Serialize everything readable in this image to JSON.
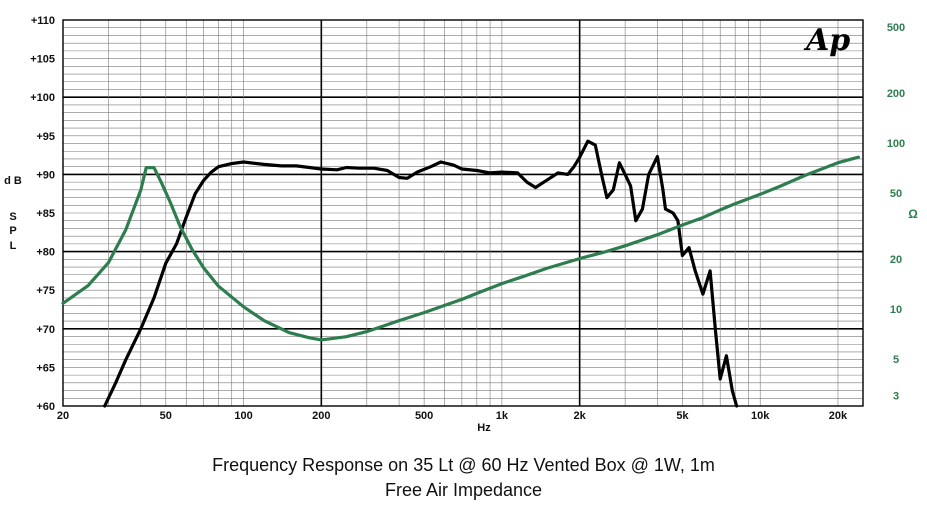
{
  "chart_data": {
    "type": "line",
    "title": "Frequency Response on 35 Lt @ 60 Hz Vented Box @ 1W, 1m",
    "subtitle": "Free Air Impedance",
    "logo_text": "Ap",
    "xlabel": "Hz",
    "ylabel": "dB SPL",
    "y2label": "Ω",
    "xscale": "log",
    "xlim": [
      20,
      25000
    ],
    "ylim": [
      60,
      110
    ],
    "y2scale": "log",
    "y2lim": [
      2.6,
      550
    ],
    "grid": true,
    "x_ticks": [
      {
        "v": 20,
        "label": "20"
      },
      {
        "v": 50,
        "label": "50"
      },
      {
        "v": 100,
        "label": "100"
      },
      {
        "v": 200,
        "label": "200"
      },
      {
        "v": 500,
        "label": "500"
      },
      {
        "v": 1000,
        "label": "1k"
      },
      {
        "v": 2000,
        "label": "2k"
      },
      {
        "v": 5000,
        "label": "5k"
      },
      {
        "v": 10000,
        "label": "10k"
      },
      {
        "v": 20000,
        "label": "20k"
      }
    ],
    "y_ticks": [
      {
        "v": 60,
        "label": "+60"
      },
      {
        "v": 65,
        "label": "+65"
      },
      {
        "v": 70,
        "label": "+70"
      },
      {
        "v": 75,
        "label": "+75"
      },
      {
        "v": 80,
        "label": "+80"
      },
      {
        "v": 85,
        "label": "+85"
      },
      {
        "v": 90,
        "label": "+90"
      },
      {
        "v": 95,
        "label": "+95"
      },
      {
        "v": 100,
        "label": "+100"
      },
      {
        "v": 105,
        "label": "+105"
      },
      {
        "v": 110,
        "label": "+110"
      }
    ],
    "y2_ticks": [
      {
        "v": 500,
        "label": "500"
      },
      {
        "v": 200,
        "label": "200"
      },
      {
        "v": 100,
        "label": "100"
      },
      {
        "v": 50,
        "label": "50"
      },
      {
        "v": 20,
        "label": "20"
      },
      {
        "v": 10,
        "label": "10"
      },
      {
        "v": 5,
        "label": "5"
      },
      {
        "v": 3,
        "label": "3"
      }
    ],
    "series": [
      {
        "axis": "left",
        "color": "#000000",
        "points": [
          [
            29,
            60
          ],
          [
            32,
            63
          ],
          [
            35,
            66
          ],
          [
            40,
            70
          ],
          [
            45,
            74
          ],
          [
            50,
            78.5
          ],
          [
            55,
            81
          ],
          [
            60,
            84.5
          ],
          [
            65,
            87.5
          ],
          [
            70,
            89.2
          ],
          [
            75,
            90.3
          ],
          [
            80,
            91
          ],
          [
            90,
            91.4
          ],
          [
            100,
            91.6
          ],
          [
            120,
            91.3
          ],
          [
            140,
            91.1
          ],
          [
            160,
            91.1
          ],
          [
            180,
            90.9
          ],
          [
            200,
            90.7
          ],
          [
            230,
            90.6
          ],
          [
            250,
            90.9
          ],
          [
            280,
            90.8
          ],
          [
            320,
            90.8
          ],
          [
            360,
            90.5
          ],
          [
            400,
            89.6
          ],
          [
            430,
            89.5
          ],
          [
            470,
            90.3
          ],
          [
            530,
            91
          ],
          [
            580,
            91.6
          ],
          [
            650,
            91.2
          ],
          [
            700,
            90.7
          ],
          [
            800,
            90.5
          ],
          [
            900,
            90.2
          ],
          [
            1000,
            90.3
          ],
          [
            1150,
            90.2
          ],
          [
            1250,
            89
          ],
          [
            1350,
            88.3
          ],
          [
            1500,
            89.3
          ],
          [
            1650,
            90.2
          ],
          [
            1800,
            90
          ],
          [
            1900,
            91
          ],
          [
            2000,
            92.2
          ],
          [
            2150,
            94.3
          ],
          [
            2300,
            93.8
          ],
          [
            2450,
            89.5
          ],
          [
            2550,
            87
          ],
          [
            2700,
            88
          ],
          [
            2850,
            91.5
          ],
          [
            3000,
            90
          ],
          [
            3150,
            88.5
          ],
          [
            3300,
            84
          ],
          [
            3500,
            85.5
          ],
          [
            3700,
            90
          ],
          [
            4000,
            92.3
          ],
          [
            4200,
            88
          ],
          [
            4300,
            85.5
          ],
          [
            4600,
            85
          ],
          [
            4800,
            84
          ],
          [
            5000,
            79.5
          ],
          [
            5300,
            80.5
          ],
          [
            5600,
            77.5
          ],
          [
            6000,
            74.5
          ],
          [
            6400,
            77.5
          ],
          [
            6700,
            70
          ],
          [
            7000,
            63.5
          ],
          [
            7400,
            66.5
          ],
          [
            7800,
            62
          ],
          [
            8100,
            60
          ]
        ]
      },
      {
        "axis": "right",
        "color": "#2e7d4f",
        "points": [
          [
            20,
            10.8
          ],
          [
            25,
            13.8
          ],
          [
            30,
            19
          ],
          [
            35,
            30
          ],
          [
            40,
            52
          ],
          [
            42,
            71
          ],
          [
            45,
            71
          ],
          [
            48,
            58
          ],
          [
            52,
            44
          ],
          [
            57,
            31
          ],
          [
            63,
            23
          ],
          [
            70,
            17.7
          ],
          [
            80,
            13.7
          ],
          [
            100,
            10.3
          ],
          [
            120,
            8.5
          ],
          [
            150,
            7.2
          ],
          [
            180,
            6.7
          ],
          [
            200,
            6.5
          ],
          [
            250,
            6.8
          ],
          [
            300,
            7.3
          ],
          [
            400,
            8.5
          ],
          [
            500,
            9.5
          ],
          [
            600,
            10.5
          ],
          [
            700,
            11.4
          ],
          [
            800,
            12.4
          ],
          [
            1000,
            14.2
          ],
          [
            1200,
            15.6
          ],
          [
            1500,
            17.6
          ],
          [
            2000,
            20.1
          ],
          [
            2500,
            22
          ],
          [
            3000,
            24
          ],
          [
            4000,
            28
          ],
          [
            5000,
            32
          ],
          [
            6000,
            35.5
          ],
          [
            7000,
            39.5
          ],
          [
            8000,
            43
          ],
          [
            10000,
            49
          ],
          [
            12000,
            55
          ],
          [
            15000,
            64
          ],
          [
            20000,
            76
          ],
          [
            24000,
            82
          ]
        ]
      }
    ]
  }
}
